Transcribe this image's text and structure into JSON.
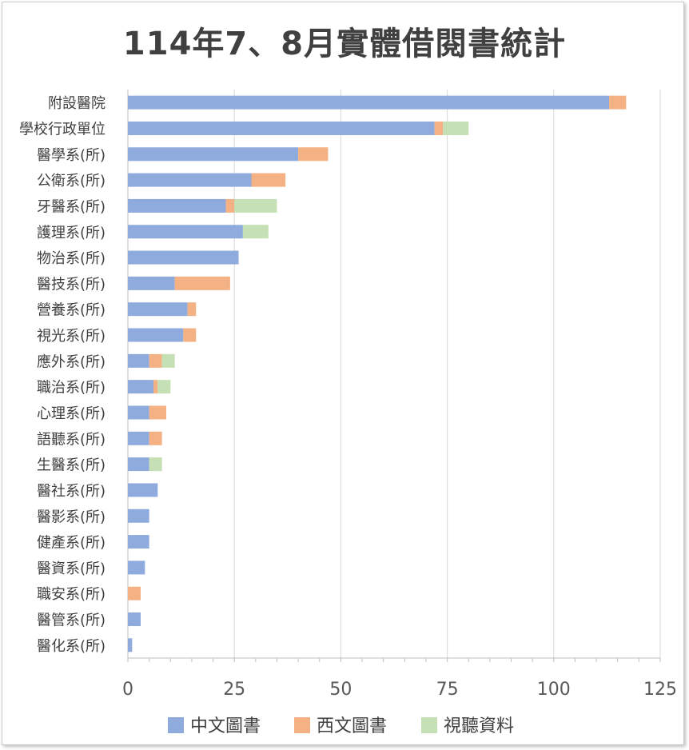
{
  "chart_data": {
    "type": "bar",
    "orientation": "horizontal",
    "stacked": true,
    "title": "114年7、8月實體借閱書統計",
    "categories": [
      "附設醫院",
      "學校行政單位",
      "醫學系(所)",
      "公衛系(所)",
      "牙醫系(所)",
      "護理系(所)",
      "物治系(所)",
      "醫技系(所)",
      "營養系(所)",
      "視光系(所)",
      "應外系(所)",
      "職治系(所)",
      "心理系(所)",
      "語聽系(所)",
      "生醫系(所)",
      "醫社系(所)",
      "醫影系(所)",
      "健產系(所)",
      "醫資系(所)",
      "職安系(所)",
      "醫管系(所)",
      "醫化系(所)"
    ],
    "series": [
      {
        "name": "中文圖書",
        "color": "#8faadc",
        "values": [
          113,
          72,
          40,
          29,
          23,
          27,
          26,
          11,
          14,
          13,
          5,
          6,
          5,
          5,
          5,
          7,
          5,
          5,
          4,
          0,
          3,
          1
        ]
      },
      {
        "name": "西文圖書",
        "color": "#f4b183",
        "values": [
          4,
          2,
          7,
          8,
          2,
          0,
          0,
          13,
          2,
          3,
          3,
          1,
          4,
          3,
          0,
          0,
          0,
          0,
          0,
          3,
          0,
          0
        ]
      },
      {
        "name": "視聽資料",
        "color": "#c5e0b4",
        "values": [
          0,
          6,
          0,
          0,
          10,
          6,
          0,
          0,
          0,
          0,
          3,
          3,
          0,
          0,
          3,
          0,
          0,
          0,
          0,
          0,
          0,
          0
        ]
      }
    ],
    "xlim": [
      0,
      125
    ],
    "xticks": [
      "0",
      "25",
      "50",
      "75",
      "100",
      "125"
    ],
    "grid": "vertical",
    "legend": "bottom"
  }
}
